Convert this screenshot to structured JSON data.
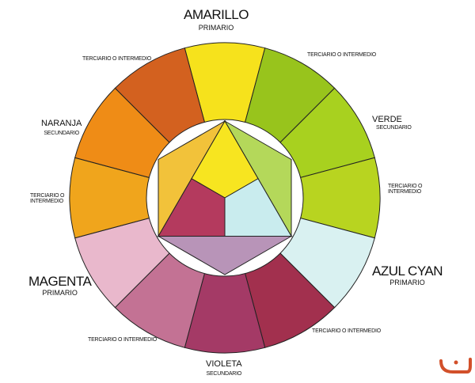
{
  "labels": {
    "amarillo": {
      "name": "AMARILLO",
      "type": "PRIMARIO"
    },
    "verde": {
      "name": "VERDE",
      "type": "SECUNDARIO"
    },
    "azul_cyan": {
      "name": "AZUL CYAN",
      "type": "PRIMARIO"
    },
    "violeta": {
      "name": "VIOLETA",
      "type": "SECUNDARIO"
    },
    "magenta": {
      "name": "MAGENTA",
      "type": "PRIMARIO"
    },
    "naranja": {
      "name": "NARANJA",
      "type": "SECUNDARIO"
    },
    "tertiary": "TERCIARIO O INTERMEDIO",
    "tertiary_line1": "TERCIARIO O",
    "tertiary_line2": "INTERMEDIO"
  },
  "outer_ring_colors": [
    "#f6e21c",
    "#98c41c",
    "#a8d11f",
    "#b8d420",
    "#d9f1f1",
    "#a2304e",
    "#a43a66",
    "#c37294",
    "#e9b8cc",
    "#f0a51c",
    "#ef8c16",
    "#d3611f"
  ],
  "inner": {
    "yellow": "#f7e520",
    "cyan": "#c9ecee",
    "magenta": "#b43a5e",
    "green": "#b4d85a",
    "violet": "#b894b8",
    "orange": "#f2c23a"
  },
  "logo_color": "#d2502a"
}
